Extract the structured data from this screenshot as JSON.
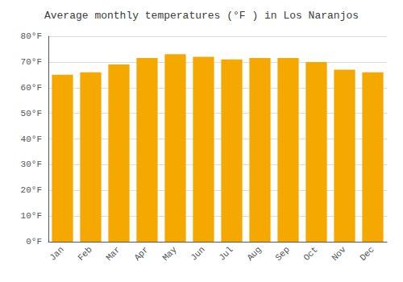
{
  "chart_data": {
    "type": "bar",
    "title": "Average monthly temperatures (°F ) in Los Naranjos",
    "categories": [
      "Jan",
      "Feb",
      "Mar",
      "Apr",
      "May",
      "Jun",
      "Jul",
      "Aug",
      "Sep",
      "Oct",
      "Nov",
      "Dec"
    ],
    "values": [
      65.0,
      66.0,
      69.0,
      71.5,
      73.0,
      72.0,
      71.0,
      71.5,
      71.5,
      70.0,
      67.0,
      66.0
    ],
    "color": "#F5A800",
    "ylim": [
      0,
      80
    ],
    "yticks": [
      {
        "value": 0,
        "label": "0°F"
      },
      {
        "value": 10,
        "label": "10°F"
      },
      {
        "value": 20,
        "label": "20°F"
      },
      {
        "value": 30,
        "label": "30°F"
      },
      {
        "value": 40,
        "label": "40°F"
      },
      {
        "value": 50,
        "label": "50°F"
      },
      {
        "value": 60,
        "label": "60°F"
      },
      {
        "value": 70,
        "label": "70°F"
      },
      {
        "value": 80,
        "label": "80°F"
      }
    ],
    "grid": true
  }
}
